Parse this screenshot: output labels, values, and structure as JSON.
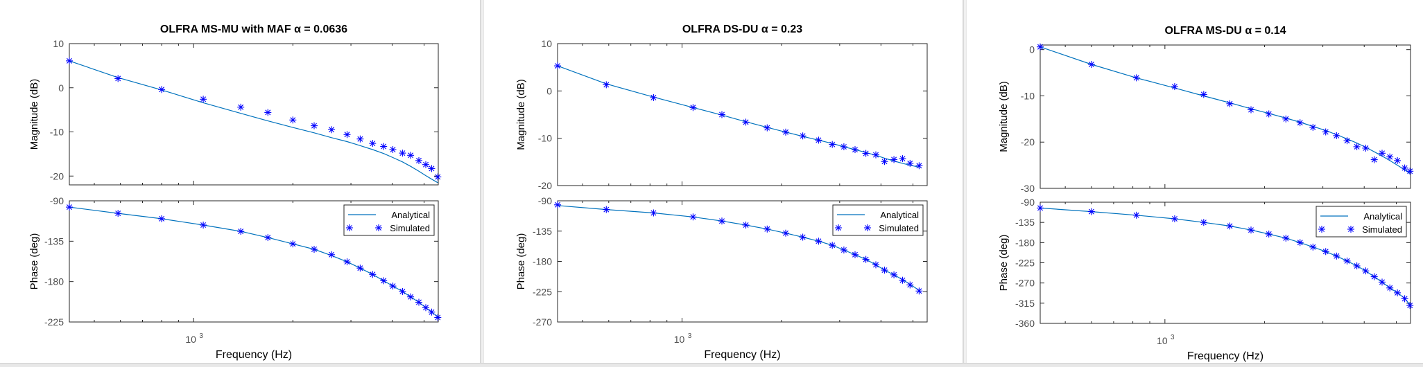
{
  "colors": {
    "line": "#0072BD",
    "marker": "#0000FF",
    "axis": "#262626",
    "tick_label": "#4d4d4d",
    "background": "#ffffff"
  },
  "common": {
    "xlabel": "Frequency  (Hz)",
    "xtick_base": "10",
    "xtick_exp": "3",
    "legend_analytical": "Analytical",
    "legend_simulated": "Simulated"
  },
  "chart_data": [
    {
      "type": "line",
      "title": "OLFRA MS-MU with MAF",
      "title_alpha": "α = 0.0636",
      "xscale": "log",
      "x": [
        420,
        590,
        800,
        1070,
        1390,
        1680,
        2000,
        2320,
        2620,
        2920,
        3200,
        3490,
        3770,
        4020,
        4300,
        4550,
        4820,
        5060,
        5270,
        5500
      ],
      "magnitude": {
        "ylabel": "Magnitude (dB)",
        "ylim": [
          -22,
          10
        ],
        "yticks": [
          "10",
          "0",
          "-10",
          "-20"
        ],
        "analytical": [
          6.1,
          2.3,
          -0.5,
          -3.4,
          -5.8,
          -7.5,
          -9.0,
          -10.2,
          -11.3,
          -12.2,
          -13.1,
          -14.0,
          -14.9,
          -15.8,
          -16.8,
          -17.8,
          -18.9,
          -19.9,
          -20.7,
          -21.5
        ],
        "simulated": [
          6.1,
          2.1,
          -0.4,
          -2.6,
          -4.4,
          -5.6,
          -7.3,
          -8.6,
          -9.5,
          -10.6,
          -11.6,
          -12.6,
          -13.3,
          -14.0,
          -14.8,
          -15.3,
          -16.5,
          -17.4,
          -18.3,
          -20.2
        ]
      },
      "phase": {
        "ylabel": "Phase (deg)",
        "ylim": [
          -225,
          -90
        ],
        "yticks": [
          "-90",
          "-135",
          "-180",
          "-225"
        ],
        "analytical": [
          -97,
          -104,
          -110,
          -117,
          -124,
          -131,
          -138,
          -144,
          -151,
          -158,
          -165,
          -172,
          -179,
          -185,
          -191,
          -197,
          -203,
          -209,
          -214,
          -219
        ],
        "simulated": [
          -97,
          -104,
          -110,
          -117,
          -124,
          -131,
          -138,
          -144,
          -150,
          -158,
          -165,
          -172,
          -179,
          -185,
          -191,
          -197,
          -203,
          -209,
          -214,
          -220
        ]
      },
      "legend_position": "top-right (phase axes)"
    },
    {
      "type": "line",
      "title": "OLFRA DS-DU",
      "title_alpha": "α = 0.23",
      "xscale": "log",
      "x": [
        420,
        590,
        820,
        1080,
        1320,
        1560,
        1810,
        2060,
        2320,
        2590,
        2850,
        3090,
        3340,
        3600,
        3860,
        4100,
        4380,
        4650,
        4900,
        5220
      ],
      "magnitude": {
        "ylabel": "Magnitude (dB)",
        "ylim": [
          -20,
          10
        ],
        "yticks": [
          "10",
          "0",
          "-10",
          "-20"
        ],
        "analytical": [
          5.3,
          1.5,
          -1.3,
          -3.5,
          -5.1,
          -6.5,
          -7.7,
          -8.7,
          -9.6,
          -10.4,
          -11.1,
          -11.8,
          -12.4,
          -13.0,
          -13.6,
          -14.2,
          -14.8,
          -15.3,
          -15.7,
          -16.1
        ],
        "simulated": [
          5.3,
          1.3,
          -1.4,
          -3.5,
          -5.0,
          -6.6,
          -7.8,
          -8.7,
          -9.5,
          -10.4,
          -11.3,
          -11.8,
          -12.4,
          -13.2,
          -13.5,
          -14.9,
          -14.5,
          -14.3,
          -15.3,
          -15.8
        ]
      },
      "phase": {
        "ylabel": "Phase (deg)",
        "ylim": [
          -270,
          -90
        ],
        "yticks": [
          "-90",
          "-135",
          "-180",
          "-225",
          "-270"
        ],
        "analytical": [
          -97,
          -103,
          -108,
          -114,
          -120,
          -126,
          -132,
          -138,
          -144,
          -150,
          -156,
          -163,
          -170,
          -177,
          -185,
          -193,
          -200,
          -207,
          -214,
          -223
        ],
        "simulated": [
          -96,
          -103,
          -108,
          -114,
          -120,
          -126,
          -132,
          -138,
          -144,
          -150,
          -156,
          -163,
          -170,
          -177,
          -185,
          -193,
          -200,
          -208,
          -215,
          -224
        ]
      },
      "legend_position": "top-right (phase axes)"
    },
    {
      "type": "line",
      "title": "OLFRA MS-DU",
      "title_alpha": "α = 0.14",
      "xscale": "log",
      "x": [
        420,
        600,
        820,
        1070,
        1310,
        1570,
        1820,
        2060,
        2320,
        2560,
        2800,
        3060,
        3300,
        3550,
        3800,
        4040,
        4290,
        4530,
        4780,
        5040,
        5300,
        5500
      ],
      "magnitude": {
        "ylabel": "Magnitude (dB)",
        "ylim": [
          -30,
          1
        ],
        "yticks": [
          "0",
          "-10",
          "-20",
          "-30"
        ],
        "analytical": [
          0.6,
          -3.2,
          -6.1,
          -8.3,
          -10.0,
          -11.5,
          -12.8,
          -13.8,
          -14.8,
          -15.7,
          -16.6,
          -17.5,
          -18.4,
          -19.3,
          -20.2,
          -21.1,
          -22.1,
          -23.0,
          -24.0,
          -25.0,
          -26.0,
          -26.8
        ],
        "simulated": [
          0.6,
          -3.2,
          -6.1,
          -8.0,
          -9.7,
          -11.7,
          -13.0,
          -13.9,
          -15.0,
          -15.8,
          -16.8,
          -17.8,
          -18.6,
          -19.7,
          -21.0,
          -21.3,
          -23.8,
          -22.4,
          -23.2,
          -24.0,
          -25.6,
          -26.3
        ]
      },
      "phase": {
        "ylabel": "Phase (deg)",
        "ylim": [
          -360,
          -90
        ],
        "yticks": [
          "-90",
          "-135",
          "-180",
          "-225",
          "-270",
          "-315",
          "-360"
        ],
        "analytical": [
          -103,
          -111,
          -119,
          -127,
          -135,
          -143,
          -152,
          -161,
          -170,
          -180,
          -190,
          -200,
          -210,
          -221,
          -232,
          -243,
          -256,
          -268,
          -281,
          -292,
          -304,
          -319
        ],
        "simulated": [
          -103,
          -111,
          -119,
          -127,
          -135,
          -143,
          -152,
          -161,
          -170,
          -180,
          -190,
          -200,
          -210,
          -221,
          -232,
          -243,
          -256,
          -268,
          -281,
          -292,
          -305,
          -320
        ]
      },
      "legend_position": "top-right (phase axes)"
    }
  ]
}
